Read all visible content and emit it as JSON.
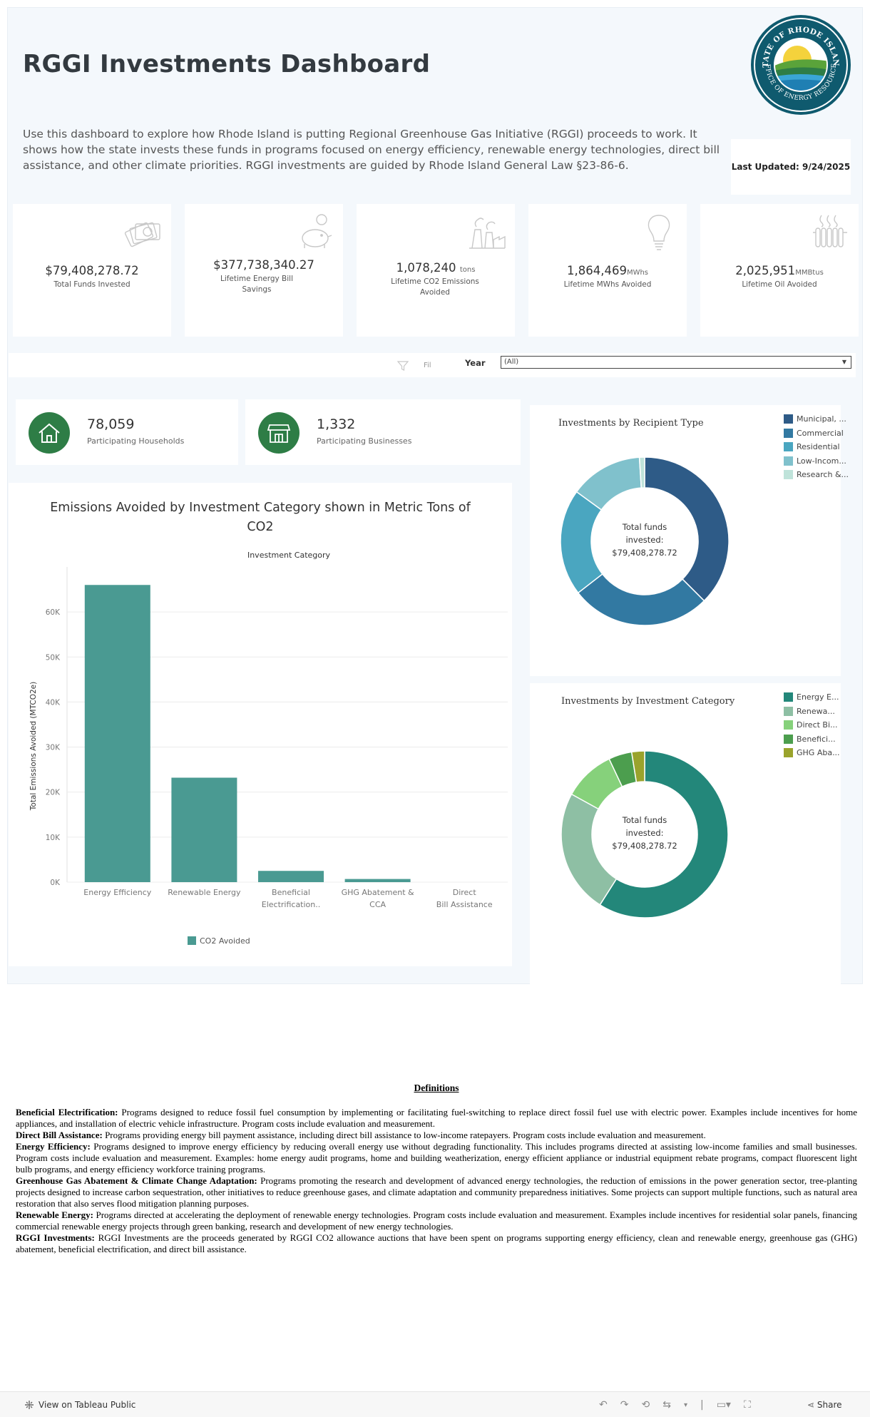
{
  "header": {
    "title": "RGGI Investments Dashboard",
    "intro": "Use this dashboard to explore how Rhode Island is putting Regional Greenhouse Gas Initiative (RGGI) proceeds to work. It shows how the state invests these funds in programs focused on energy efficiency, renewable energy technologies, direct bill assistance, and other climate priorities. RGGI investments are guided by Rhode Island General Law §23-86-6.",
    "last_updated": "Last Updated: 9/24/2025",
    "seal": {
      "top_text": "STATE OF RHODE ISLAND",
      "bottom_text": "OFFICE OF ENERGY RESOURCES"
    }
  },
  "kpis": [
    {
      "value": "$79,408,278.72",
      "unit": "",
      "label": "Total Funds Invested",
      "icon": "money-stack-icon"
    },
    {
      "value": "$377,738,340.27",
      "unit": "",
      "label": "Lifetime Energy Bill Savings",
      "icon": "piggy-bank-icon"
    },
    {
      "value": "1,078,240",
      "unit": "tons",
      "label": "Lifetime CO2 Emissions Avoided",
      "icon": "factory-icon"
    },
    {
      "value": "1,864,469",
      "unit": "MWhs",
      "label": "Lifetime MWhs Avoided",
      "icon": "lightbulb-icon"
    },
    {
      "value": "2,025,951",
      "unit": "MMBtus",
      "label": "Lifetime Oil Avoided",
      "icon": "radiator-icon"
    }
  ],
  "filter": {
    "filter_text": "Fil",
    "year_label": "Year",
    "year_value": "(All)"
  },
  "stats": [
    {
      "value": "78,059",
      "label": "Participating Households",
      "icon": "house-icon"
    },
    {
      "value": "1,332",
      "label": "Participating Businesses",
      "icon": "storefront-icon"
    }
  ],
  "colors": {
    "bar": "#4a9a92",
    "green_circle": "#2e7d46"
  },
  "chart_data": [
    {
      "type": "bar",
      "title": "Emissions Avoided by Investment Category shown in Metric Tons of CO2",
      "subtitle": "Investment Category",
      "ylabel": "Total Emissions Avoided (MTCO2e)",
      "categories": [
        "Energy Efficiency",
        "Renewable Energy",
        "Beneficial Electrification..",
        "GHG Abatement & CCA",
        "Direct Bill Assistance"
      ],
      "values": [
        66000,
        23200,
        2500,
        700,
        0
      ],
      "yticks": [
        "0K",
        "10K",
        "20K",
        "30K",
        "40K",
        "50K",
        "60K"
      ],
      "ylim": [
        0,
        70000
      ],
      "legend": "CO2 Avoided",
      "color": "#4a9a92"
    },
    {
      "type": "pie",
      "variant": "donut",
      "title": "Investments by Recipient Type",
      "center_text": [
        "Total funds",
        "invested:",
        "$79,408,278.72"
      ],
      "legend": [
        "Municipal, ...",
        "Commercial",
        "Residential",
        "Low-Incom...",
        "Research &..."
      ],
      "colors": [
        "#2e5b87",
        "#3279a2",
        "#4aa6c0",
        "#80c1cc",
        "#bfe3da"
      ],
      "values": [
        0.375,
        0.27,
        0.205,
        0.14,
        0.01
      ]
    },
    {
      "type": "pie",
      "variant": "donut",
      "title": "Investments by Investment Category",
      "center_text": [
        "Total funds",
        "invested:",
        "$79,408,278.72"
      ],
      "legend": [
        "Energy E...",
        "Renewa...",
        "Direct Bi...",
        "Benefici...",
        "GHG Aba..."
      ],
      "colors": [
        "#23877a",
        "#8ebfa4",
        "#86d17b",
        "#4c9e4e",
        "#9aa32c"
      ],
      "values": [
        0.59,
        0.24,
        0.1,
        0.045,
        0.025
      ]
    }
  ],
  "definitions": {
    "title": "Definitions",
    "items": [
      {
        "term": "Beneficial Electrification:",
        "text": "Programs designed to reduce fossil fuel consumption by implementing or facilitating fuel-switching to replace direct fossil fuel use with electric power. Examples include incentives for home appliances, and installation of electric vehicle infrastructure. Program costs include evaluation and measurement."
      },
      {
        "term": "Direct Bill Assistance:",
        "text": "Programs providing energy bill payment assistance, including direct bill assistance to low-income ratepayers. Program costs include evaluation and measurement."
      },
      {
        "term": "Energy Efficiency:",
        "text": "Programs designed to improve energy efficiency by reducing overall energy use without degrading functionality. This includes programs directed at assisting low-income families and small businesses. Program costs include evaluation and measurement. Examples: home energy audit programs, home and building weatherization, energy efficient appliance or industrial equipment rebate programs, compact fluorescent light bulb programs, and energy efficiency workforce training programs."
      },
      {
        "term": "Greenhouse Gas Abatement & Climate Change Adaptation:",
        "text": "Programs promoting the research and development of advanced energy technologies, the reduction of emissions in the power generation sector, tree-planting projects designed to increase carbon sequestration, other initiatives to reduce greenhouse gases, and climate adaptation and community preparedness initiatives. Some projects can support multiple functions, such as natural area restoration that also serves flood mitigation planning purposes."
      },
      {
        "term": "Renewable Energy:",
        "text": "Programs directed at accelerating the deployment of renewable energy technologies. Program costs include evaluation and measurement. Examples include incentives for residential solar panels, financing commercial renewable energy projects through green banking, research and development of new energy technologies."
      },
      {
        "term": "RGGI Investments:",
        "text": "RGGI Investments are the proceeds generated by RGGI CO2 allowance auctions that have been spent on programs supporting energy efficiency, clean and renewable energy, greenhouse gas (GHG) abatement, beneficial electrification, and direct bill assistance."
      }
    ]
  },
  "footer": {
    "view_label": "View on Tableau Public",
    "share_label": "Share"
  }
}
